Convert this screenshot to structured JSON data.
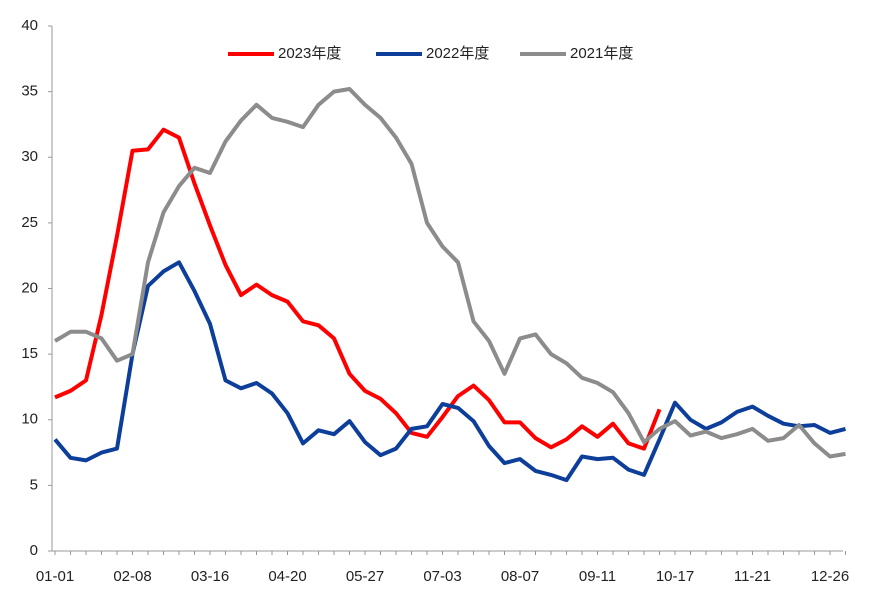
{
  "chart_data": {
    "type": "line",
    "categories": [
      "01-01",
      null,
      null,
      null,
      null,
      "02-08",
      null,
      null,
      null,
      null,
      "03-16",
      null,
      null,
      null,
      null,
      "04-20",
      null,
      null,
      null,
      null,
      "05-27",
      null,
      null,
      null,
      null,
      "07-03",
      null,
      null,
      null,
      null,
      "08-07",
      null,
      null,
      null,
      null,
      "09-11",
      null,
      null,
      null,
      null,
      "10-17",
      null,
      null,
      null,
      null,
      "11-21",
      null,
      null,
      null,
      null,
      "12-26",
      null
    ],
    "series": [
      {
        "name": "2023年度",
        "color": "#ff0000",
        "values": [
          11.7,
          12.2,
          13,
          18,
          24,
          30.5,
          30.6,
          32.1,
          31.5,
          28,
          24.8,
          21.8,
          19.5,
          20.3,
          19.5,
          19.0,
          17.5,
          17.2,
          16.2,
          13.5,
          12.2,
          11.6,
          10.5,
          9.0,
          8.7,
          10.2,
          11.8,
          12.6,
          11.5,
          9.8,
          9.8,
          8.6,
          7.9,
          8.5,
          9.5,
          8.7,
          9.7,
          8.2,
          7.8,
          10.8,
          null,
          null,
          null,
          null,
          null,
          null,
          null,
          null,
          null,
          null,
          null,
          null
        ]
      },
      {
        "name": "2022年度",
        "color": "#0d3f9a",
        "values": [
          8.5,
          7.1,
          6.9,
          7.5,
          7.8,
          15,
          20.2,
          21.3,
          22,
          19.8,
          17.3,
          13.0,
          12.4,
          12.8,
          12.0,
          10.5,
          8.2,
          9.2,
          8.9,
          9.9,
          8.3,
          7.3,
          7.8,
          9.3,
          9.5,
          11.2,
          10.9,
          9.9,
          8.0,
          6.7,
          7.0,
          6.1,
          5.8,
          5.4,
          7.2,
          7.0,
          7.1,
          6.2,
          5.8,
          8.5,
          11.3,
          10,
          9.3,
          9.8,
          10.6,
          11.0,
          10.3,
          9.7,
          9.5,
          9.6,
          9.0,
          9.3
        ]
      },
      {
        "name": "2021年度",
        "color": "#8c8c8c",
        "values": [
          16,
          16.7,
          16.7,
          16.2,
          14.5,
          15.0,
          22,
          25.8,
          27.8,
          29.2,
          28.8,
          31.2,
          32.8,
          34.0,
          33.0,
          32.7,
          32.3,
          34.0,
          35.0,
          35.2,
          34.0,
          33.0,
          31.5,
          29.5,
          25.0,
          23.2,
          22.0,
          17.5,
          16.0,
          13.5,
          16.2,
          16.5,
          15.0,
          14.3,
          13.2,
          12.8,
          12.1,
          10.5,
          8.3,
          9.3,
          9.9,
          8.8,
          9.1,
          8.6,
          8.9,
          9.3,
          8.4,
          8.6,
          9.6,
          8.2,
          7.2,
          7.4
        ]
      }
    ],
    "ylim": [
      0,
      40
    ],
    "yticks": [
      0,
      5,
      10,
      15,
      20,
      25,
      30,
      35,
      40
    ],
    "grid": false
  }
}
